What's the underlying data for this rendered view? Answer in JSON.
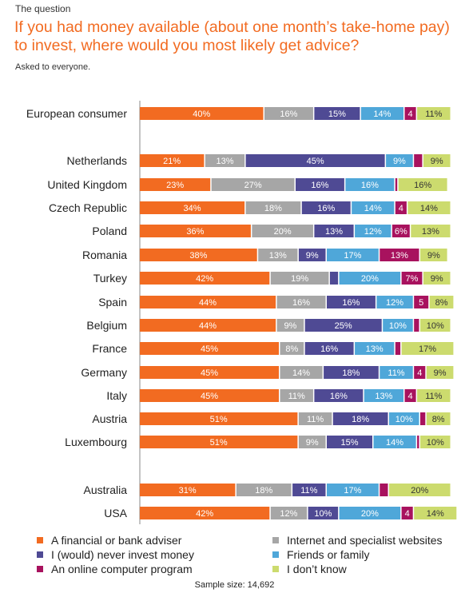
{
  "kicker": "The question",
  "title": "If you had money available (about one month’s take-home pay) to invest, where would you most likely get advice?",
  "subtitle": "Asked to everyone.",
  "sample_size": "Sample size: 14,692",
  "colors": {
    "title": "#F26B21",
    "adviser": "#F26B21",
    "internet": "#A6A6A6",
    "never": "#4F4A94",
    "friends": "#4FA7D9",
    "program": "#A8125E",
    "dontknow": "#CCDB6E"
  },
  "chart_data": {
    "type": "bar",
    "orientation": "horizontal",
    "stacked": true,
    "percent_stacked": true,
    "xlim": [
      0,
      100
    ],
    "grid": false,
    "legend_position": "bottom",
    "categories": [
      "European consumer",
      "Netherlands",
      "United Kingdom",
      "Czech Republic",
      "Poland",
      "Romania",
      "Turkey",
      "Spain",
      "Belgium",
      "France",
      "Germany",
      "Italy",
      "Austria",
      "Luxembourg",
      "Australia",
      "USA"
    ],
    "series": [
      {
        "name": "A financial or bank adviser",
        "key": "adviser",
        "values": [
          40,
          21,
          23,
          34,
          36,
          38,
          42,
          44,
          44,
          45,
          45,
          45,
          51,
          51,
          31,
          42
        ]
      },
      {
        "name": "Internet and specialist websites",
        "key": "internet",
        "values": [
          16,
          13,
          27,
          18,
          20,
          13,
          19,
          16,
          9,
          8,
          14,
          11,
          11,
          9,
          18,
          12
        ]
      },
      {
        "name": "I (would) never invest money",
        "key": "never",
        "values": [
          15,
          45,
          16,
          16,
          13,
          9,
          3,
          16,
          25,
          16,
          18,
          16,
          18,
          15,
          11,
          10
        ]
      },
      {
        "name": "Friends or family",
        "key": "friends",
        "values": [
          14,
          9,
          16,
          14,
          12,
          17,
          20,
          12,
          10,
          13,
          11,
          13,
          10,
          14,
          17,
          20
        ]
      },
      {
        "name": "An online computer program",
        "key": "program",
        "values": [
          4,
          3,
          1,
          4,
          6,
          13,
          7,
          5,
          2,
          2,
          4,
          4,
          2,
          1,
          3,
          4
        ]
      },
      {
        "name": "I don’t know",
        "key": "dontknow",
        "values": [
          11,
          9,
          16,
          14,
          13,
          9,
          9,
          8,
          10,
          17,
          9,
          11,
          8,
          10,
          20,
          14
        ]
      }
    ],
    "data_labels": [
      [
        "40%",
        "16%",
        "15%",
        "14%",
        "4",
        "11%"
      ],
      [
        "21%",
        "13%",
        "45%",
        "9%",
        "",
        "9%"
      ],
      [
        "23%",
        "27%",
        "16%",
        "16%",
        "",
        "16%"
      ],
      [
        "34%",
        "18%",
        "16%",
        "14%",
        "4",
        "14%"
      ],
      [
        "36%",
        "20%",
        "13%",
        "12%",
        "6%",
        "13%"
      ],
      [
        "38%",
        "13%",
        "9%",
        "17%",
        "13%",
        "9%"
      ],
      [
        "42%",
        "19%",
        "",
        "20%",
        "7%",
        "9%"
      ],
      [
        "44%",
        "16%",
        "16%",
        "12%",
        "5",
        "8%"
      ],
      [
        "44%",
        "9%",
        "25%",
        "10%",
        "",
        "10%"
      ],
      [
        "45%",
        "8%",
        "16%",
        "13%",
        "",
        "17%"
      ],
      [
        "45%",
        "14%",
        "18%",
        "11%",
        "4",
        "9%"
      ],
      [
        "45%",
        "11%",
        "16%",
        "13%",
        "4",
        "11%"
      ],
      [
        "51%",
        "11%",
        "18%",
        "10%",
        "",
        "8%"
      ],
      [
        "51%",
        "9%",
        "15%",
        "14%",
        "",
        "10%"
      ],
      [
        "31%",
        "18%",
        "11%",
        "17%",
        "",
        "20%"
      ],
      [
        "42%",
        "12%",
        "10%",
        "20%",
        "4",
        "14%"
      ]
    ]
  },
  "legend": [
    {
      "label": "A financial or bank adviser",
      "key": "adviser"
    },
    {
      "label": "Internet and specialist websites",
      "key": "internet"
    },
    {
      "label": "I (would) never invest money",
      "key": "never"
    },
    {
      "label": "Friends or family",
      "key": "friends"
    },
    {
      "label": "An online computer program",
      "key": "program"
    },
    {
      "label": "I don’t know",
      "key": "dontknow"
    }
  ]
}
